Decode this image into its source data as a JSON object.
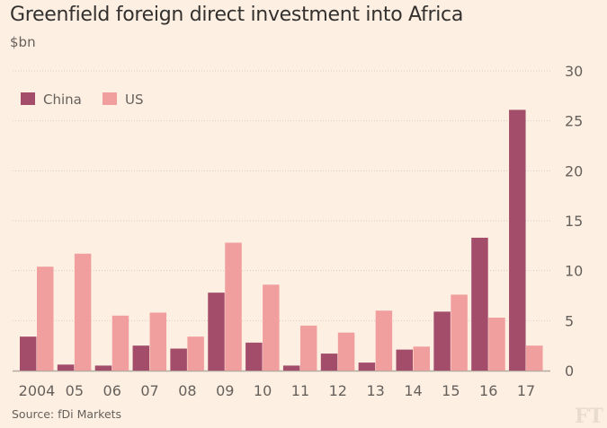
{
  "chart_data": {
    "type": "bar",
    "title": "Greenfield foreign direct investment into Africa",
    "subtitle": "$bn",
    "source": "Source: fDi Markets",
    "logo": "FT",
    "xlabel": "",
    "ylabel": "$bn",
    "ylim": [
      0,
      30
    ],
    "yticks": [
      0,
      5,
      10,
      15,
      20,
      25,
      30
    ],
    "y_axis_position": "right",
    "grid": true,
    "legend_position": "top-left",
    "categories": [
      "2004",
      "05",
      "06",
      "07",
      "08",
      "09",
      "10",
      "11",
      "12",
      "13",
      "14",
      "15",
      "16",
      "17"
    ],
    "series": [
      {
        "name": "China",
        "color": "#a34d6a",
        "values": [
          3.4,
          0.6,
          0.5,
          2.5,
          2.2,
          7.8,
          2.8,
          0.5,
          1.7,
          0.8,
          2.1,
          5.9,
          13.3,
          26.1
        ]
      },
      {
        "name": "US",
        "color": "#f19e9e",
        "values": [
          10.4,
          11.7,
          5.5,
          5.8,
          3.4,
          12.8,
          8.6,
          4.5,
          3.8,
          6.0,
          2.4,
          7.6,
          5.3,
          2.5
        ]
      }
    ]
  }
}
